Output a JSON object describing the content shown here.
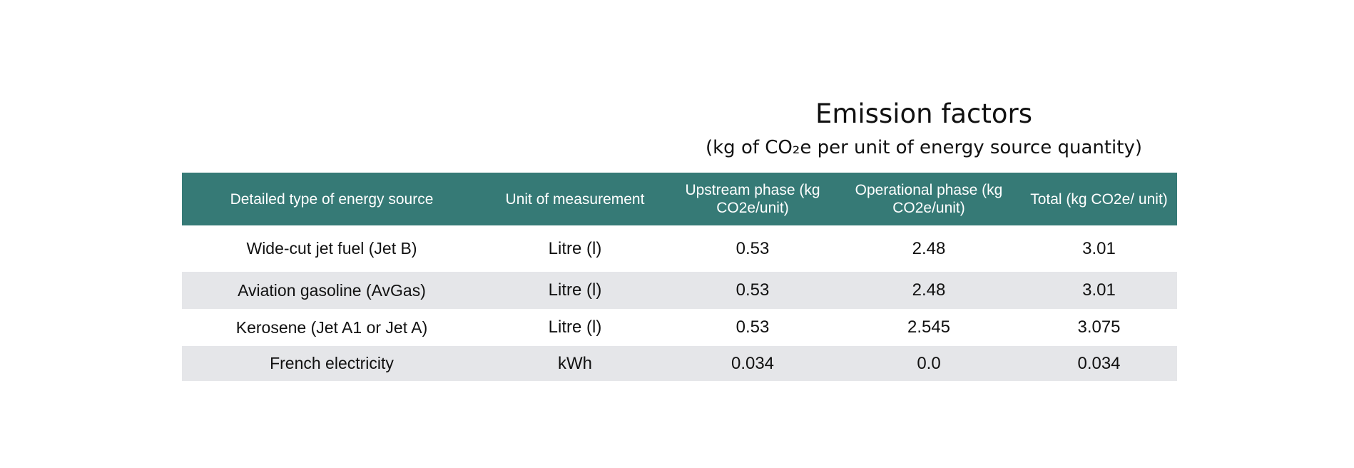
{
  "header": {
    "title": "Emission factors",
    "subtitle": "(kg of CO₂e per unit of energy source quantity)"
  },
  "table": {
    "columns": [
      "Detailed type of energy source",
      "Unit of measurement",
      "Upstream phase (kg CO2e/unit)",
      "Operational phase (kg CO2e/unit)",
      "Total (kg CO2e/ unit)"
    ],
    "rows": [
      {
        "type": "Wide-cut jet fuel (Jet B)",
        "unit": "Litre (l)",
        "upstream": "0.53",
        "operational": "2.48",
        "total": "3.01"
      },
      {
        "type": "Aviation gasoline (AvGas)",
        "unit": "Litre (l)",
        "upstream": "0.53",
        "operational": "2.48",
        "total": "3.01"
      },
      {
        "type": "Kerosene (Jet A1 or Jet A)",
        "unit": "Litre (l)",
        "upstream": "0.53",
        "operational": "2.545",
        "total": "3.075"
      },
      {
        "type": "French electricity",
        "unit": "kWh",
        "upstream": "0.034",
        "operational": "0.0",
        "total": "0.034"
      }
    ]
  },
  "colors": {
    "header_bg": "#367a76",
    "header_text": "#ffffff",
    "alt_row_bg": "#e5e6e9"
  }
}
